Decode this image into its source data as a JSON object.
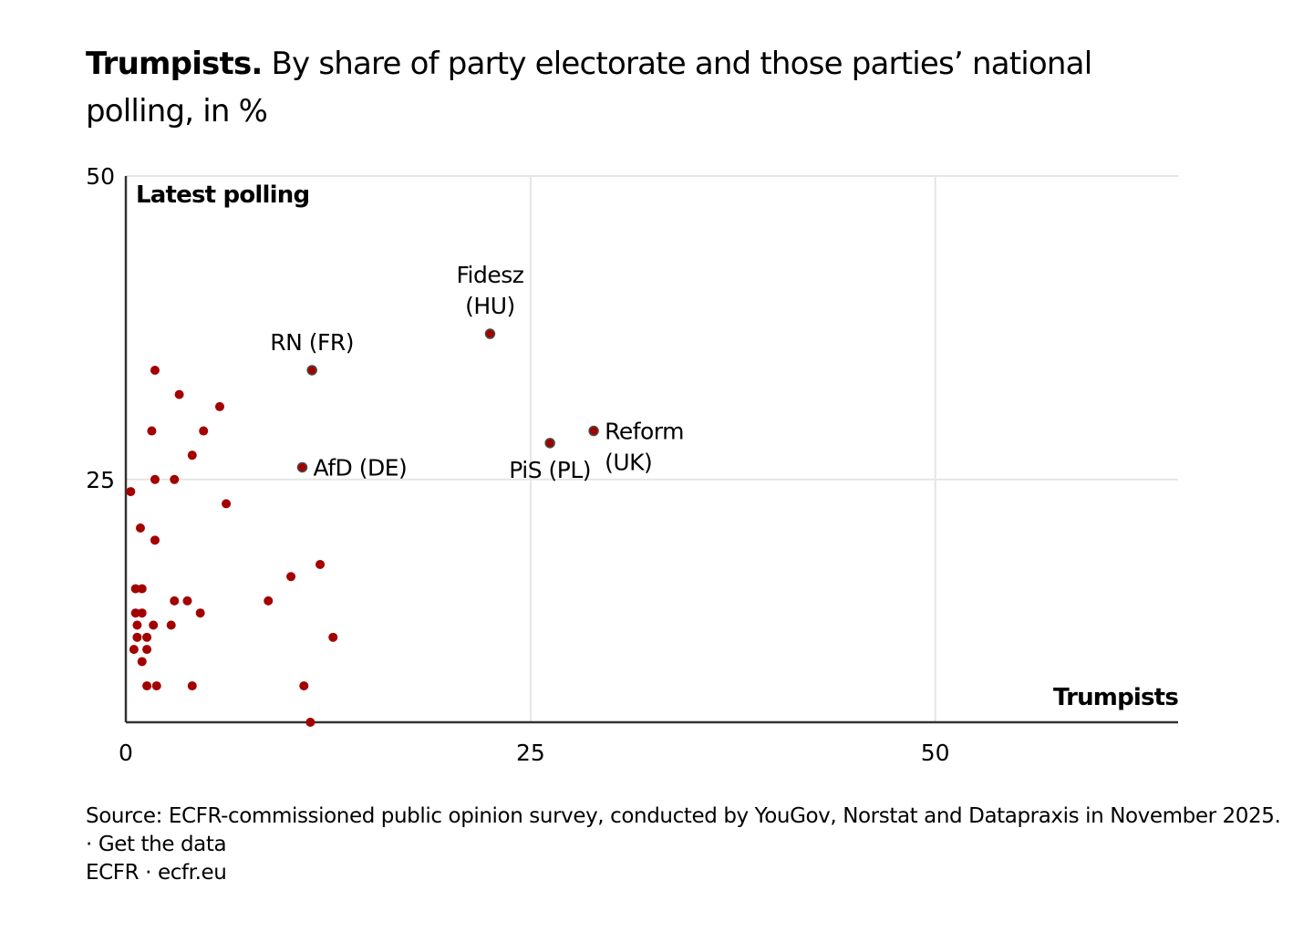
{
  "title": {
    "bold": "Trumpists.",
    "rest": " By share of party electorate and those parties’ national polling, in %"
  },
  "footer": {
    "source": "Source: ECFR-commissioned public opinion survey, conducted by YouGov, Norstat and Datapraxis in November 2025.",
    "separator": " · ",
    "get_data": "Get the data",
    "credit": "ECFR",
    "credit_link": "ecfr.eu"
  },
  "colors": {
    "dot": "#a30000",
    "dot_stroke_labeled": "#4a4a4a",
    "grid": "#e5e5e5",
    "axis": "#333333"
  },
  "chart_data": {
    "type": "scatter",
    "title": "Trumpists. By share of party electorate and those parties’ national polling, in %",
    "xlabel": "Trumpists",
    "ylabel": "Latest polling",
    "xlim": [
      0,
      65
    ],
    "ylim": [
      5,
      50
    ],
    "xticks": [
      0,
      25,
      50
    ],
    "yticks": [
      25,
      50
    ],
    "grid": true,
    "points": [
      {
        "x": 1.8,
        "y": 34.0
      },
      {
        "x": 3.3,
        "y": 32.0
      },
      {
        "x": 5.8,
        "y": 31.0
      },
      {
        "x": 1.6,
        "y": 29.0
      },
      {
        "x": 4.8,
        "y": 29.0
      },
      {
        "x": 4.1,
        "y": 27.0
      },
      {
        "x": 0.3,
        "y": 24.0
      },
      {
        "x": 1.8,
        "y": 25.0
      },
      {
        "x": 3.0,
        "y": 25.0
      },
      {
        "x": 6.2,
        "y": 23.0
      },
      {
        "x": 0.9,
        "y": 21.0
      },
      {
        "x": 1.8,
        "y": 20.0
      },
      {
        "x": 0.6,
        "y": 16.0
      },
      {
        "x": 1.0,
        "y": 16.0
      },
      {
        "x": 3.0,
        "y": 15.0
      },
      {
        "x": 3.8,
        "y": 15.0
      },
      {
        "x": 0.6,
        "y": 14.0
      },
      {
        "x": 1.0,
        "y": 14.0
      },
      {
        "x": 4.6,
        "y": 14.0
      },
      {
        "x": 0.7,
        "y": 13.0
      },
      {
        "x": 1.7,
        "y": 13.0
      },
      {
        "x": 2.8,
        "y": 13.0
      },
      {
        "x": 0.7,
        "y": 12.0
      },
      {
        "x": 1.3,
        "y": 12.0
      },
      {
        "x": 0.5,
        "y": 11.0
      },
      {
        "x": 1.3,
        "y": 11.0
      },
      {
        "x": 1.0,
        "y": 10.0
      },
      {
        "x": 1.3,
        "y": 8.0
      },
      {
        "x": 1.9,
        "y": 8.0
      },
      {
        "x": 4.1,
        "y": 8.0
      },
      {
        "x": 10.2,
        "y": 17.0
      },
      {
        "x": 12.0,
        "y": 18.0
      },
      {
        "x": 8.8,
        "y": 15.0
      },
      {
        "x": 12.8,
        "y": 12.0
      },
      {
        "x": 11.0,
        "y": 8.0
      },
      {
        "x": 11.4,
        "y": 5.0
      }
    ],
    "labeled_points": [
      {
        "label": "RN (FR)",
        "x": 11.5,
        "y": 34.0,
        "label_pos": "above"
      },
      {
        "label": "Fidesz (HU)",
        "lines": [
          "Fidesz",
          "(HU)"
        ],
        "x": 22.5,
        "y": 37.0,
        "label_pos": "above"
      },
      {
        "label": "AfD (DE)",
        "x": 10.9,
        "y": 26.0,
        "label_pos": "right"
      },
      {
        "label": "PiS (PL)",
        "x": 26.2,
        "y": 28.0,
        "label_pos": "below"
      },
      {
        "label": "Reform (UK)",
        "lines": [
          "Reform",
          "(UK)"
        ],
        "x": 28.9,
        "y": 29.0,
        "label_pos": "right"
      }
    ]
  }
}
